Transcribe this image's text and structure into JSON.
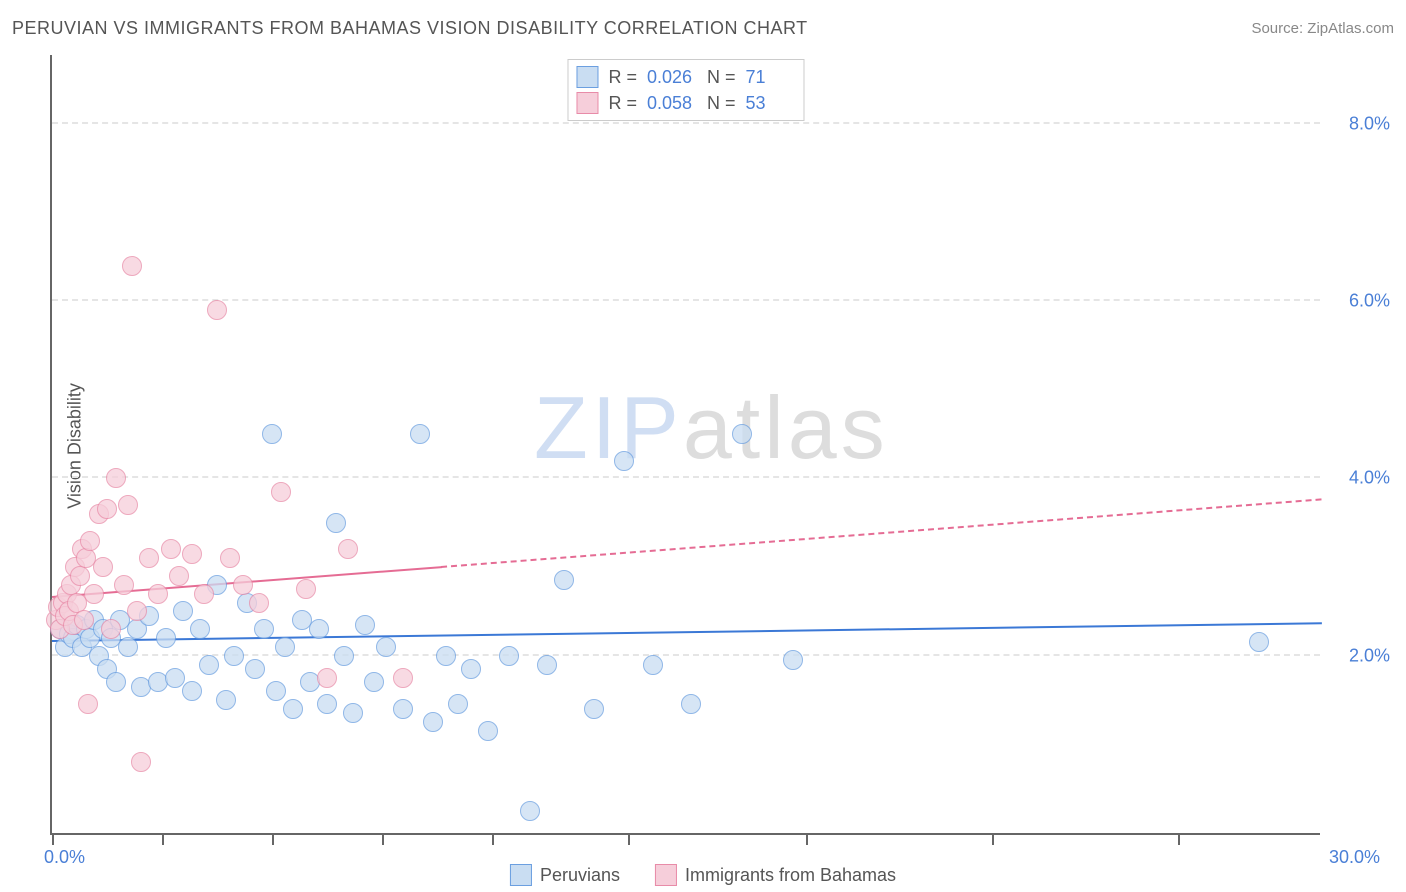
{
  "header": {
    "title": "PERUVIAN VS IMMIGRANTS FROM BAHAMAS VISION DISABILITY CORRELATION CHART",
    "source": "Source: ZipAtlas.com"
  },
  "watermark": {
    "zip": "ZIP",
    "atlas": "atlas"
  },
  "chart": {
    "type": "scatter",
    "ylabel": "Vision Disability",
    "xlim": [
      0,
      30
    ],
    "ylim": [
      0,
      8.8
    ],
    "xtick_positions": [
      0,
      2.6,
      5.2,
      7.8,
      10.4,
      13.6,
      17.8,
      22.2,
      26.6
    ],
    "xaxis_start_label": "0.0%",
    "xaxis_end_label": "30.0%",
    "yticks": [
      {
        "v": 2.0,
        "label": "2.0%"
      },
      {
        "v": 4.0,
        "label": "4.0%"
      },
      {
        "v": 6.0,
        "label": "6.0%"
      },
      {
        "v": 8.0,
        "label": "8.0%"
      }
    ],
    "grid_color": "#e5e5e5",
    "background_color": "#ffffff",
    "marker_radius": 10,
    "series": [
      {
        "name": "Peruvians",
        "fill": "#c9ddf2",
        "stroke": "#6b9fe0",
        "fill_opacity": 0.75,
        "trend": {
          "color": "#3b78d6",
          "y_at_x0": 2.15,
          "y_at_xmax": 2.35,
          "solid_until_x": 30
        },
        "stats": {
          "R": "0.026",
          "N": "71"
        },
        "points": [
          [
            0.2,
            2.3
          ],
          [
            0.3,
            2.1
          ],
          [
            0.4,
            2.25
          ],
          [
            0.5,
            2.2
          ],
          [
            0.6,
            2.35
          ],
          [
            0.7,
            2.1
          ],
          [
            0.8,
            2.3
          ],
          [
            0.9,
            2.2
          ],
          [
            1.0,
            2.4
          ],
          [
            1.1,
            2.0
          ],
          [
            1.2,
            2.3
          ],
          [
            1.3,
            1.85
          ],
          [
            1.4,
            2.2
          ],
          [
            1.5,
            1.7
          ],
          [
            1.6,
            2.4
          ],
          [
            1.8,
            2.1
          ],
          [
            2.0,
            2.3
          ],
          [
            2.1,
            1.65
          ],
          [
            2.3,
            2.45
          ],
          [
            2.5,
            1.7
          ],
          [
            2.7,
            2.2
          ],
          [
            2.9,
            1.75
          ],
          [
            3.1,
            2.5
          ],
          [
            3.3,
            1.6
          ],
          [
            3.5,
            2.3
          ],
          [
            3.7,
            1.9
          ],
          [
            3.9,
            2.8
          ],
          [
            4.1,
            1.5
          ],
          [
            4.3,
            2.0
          ],
          [
            4.6,
            2.6
          ],
          [
            4.8,
            1.85
          ],
          [
            5.0,
            2.3
          ],
          [
            5.2,
            4.5
          ],
          [
            5.3,
            1.6
          ],
          [
            5.5,
            2.1
          ],
          [
            5.7,
            1.4
          ],
          [
            5.9,
            2.4
          ],
          [
            6.1,
            1.7
          ],
          [
            6.3,
            2.3
          ],
          [
            6.5,
            1.45
          ],
          [
            6.7,
            3.5
          ],
          [
            6.9,
            2.0
          ],
          [
            7.1,
            1.35
          ],
          [
            7.4,
            2.35
          ],
          [
            7.6,
            1.7
          ],
          [
            7.9,
            2.1
          ],
          [
            8.3,
            1.4
          ],
          [
            8.7,
            4.5
          ],
          [
            9.0,
            1.25
          ],
          [
            9.3,
            2.0
          ],
          [
            9.6,
            1.45
          ],
          [
            9.9,
            1.85
          ],
          [
            10.3,
            1.15
          ],
          [
            10.8,
            2.0
          ],
          [
            11.3,
            0.25
          ],
          [
            11.7,
            1.9
          ],
          [
            12.1,
            2.85
          ],
          [
            12.8,
            1.4
          ],
          [
            13.5,
            4.2
          ],
          [
            14.2,
            1.9
          ],
          [
            15.1,
            1.45
          ],
          [
            16.3,
            4.5
          ],
          [
            17.5,
            1.95
          ],
          [
            28.5,
            2.15
          ]
        ]
      },
      {
        "name": "Immigrants from Bahamas",
        "fill": "#f6ceda",
        "stroke": "#e88ba8",
        "fill_opacity": 0.75,
        "trend": {
          "color": "#e56c94",
          "y_at_x0": 2.65,
          "y_at_xmax": 3.75,
          "solid_until_x": 9.2
        },
        "stats": {
          "R": "0.058",
          "N": "53"
        },
        "points": [
          [
            0.1,
            2.4
          ],
          [
            0.15,
            2.55
          ],
          [
            0.2,
            2.3
          ],
          [
            0.25,
            2.6
          ],
          [
            0.3,
            2.45
          ],
          [
            0.35,
            2.7
          ],
          [
            0.4,
            2.5
          ],
          [
            0.45,
            2.8
          ],
          [
            0.5,
            2.35
          ],
          [
            0.55,
            3.0
          ],
          [
            0.6,
            2.6
          ],
          [
            0.65,
            2.9
          ],
          [
            0.7,
            3.2
          ],
          [
            0.75,
            2.4
          ],
          [
            0.8,
            3.1
          ],
          [
            0.85,
            1.45
          ],
          [
            0.9,
            3.3
          ],
          [
            1.0,
            2.7
          ],
          [
            1.1,
            3.6
          ],
          [
            1.2,
            3.0
          ],
          [
            1.3,
            3.65
          ],
          [
            1.4,
            2.3
          ],
          [
            1.5,
            4.0
          ],
          [
            1.7,
            2.8
          ],
          [
            1.8,
            3.7
          ],
          [
            1.9,
            6.4
          ],
          [
            2.0,
            2.5
          ],
          [
            2.1,
            0.8
          ],
          [
            2.3,
            3.1
          ],
          [
            2.5,
            2.7
          ],
          [
            2.8,
            3.2
          ],
          [
            3.0,
            2.9
          ],
          [
            3.3,
            3.15
          ],
          [
            3.6,
            2.7
          ],
          [
            3.9,
            5.9
          ],
          [
            4.2,
            3.1
          ],
          [
            4.5,
            2.8
          ],
          [
            4.9,
            2.6
          ],
          [
            5.4,
            3.85
          ],
          [
            6.0,
            2.75
          ],
          [
            6.5,
            1.75
          ],
          [
            7.0,
            3.2
          ],
          [
            8.3,
            1.75
          ]
        ]
      }
    ]
  },
  "stats_box": {
    "r_label": "R =",
    "n_label": "N ="
  },
  "legend": {
    "items": [
      "Peruvians",
      "Immigrants from Bahamas"
    ]
  }
}
